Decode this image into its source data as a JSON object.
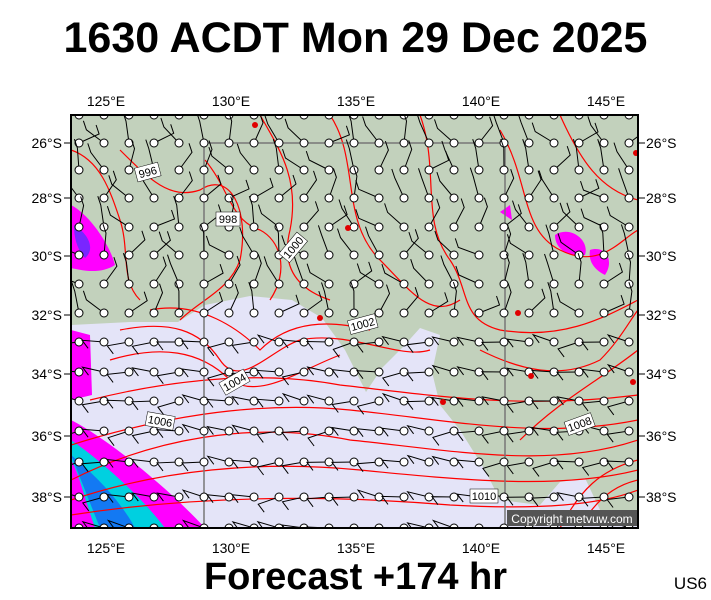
{
  "title": "1630 ACDT Mon 29 Dec 2025",
  "footer": "Forecast +174 hr",
  "region_code": "US6",
  "copyright": "Copyright metvuw.com",
  "lon_labels": [
    "125°E",
    "130°E",
    "135°E",
    "140°E",
    "145°E"
  ],
  "lat_labels": [
    "26°S",
    "28°S",
    "30°S",
    "32°S",
    "34°S",
    "36°S",
    "38°S"
  ],
  "isobar_labels": [
    "996",
    "998",
    "1000",
    "1002",
    "1004",
    "1006",
    "1008",
    "1010"
  ],
  "colors": {
    "land": "#c2d1bc",
    "sea": "#e4e4f8",
    "isobar": "#ff0000",
    "rain_light": "#ff00ff",
    "rain_heavy": "#00e0e0",
    "station": "#000000"
  }
}
